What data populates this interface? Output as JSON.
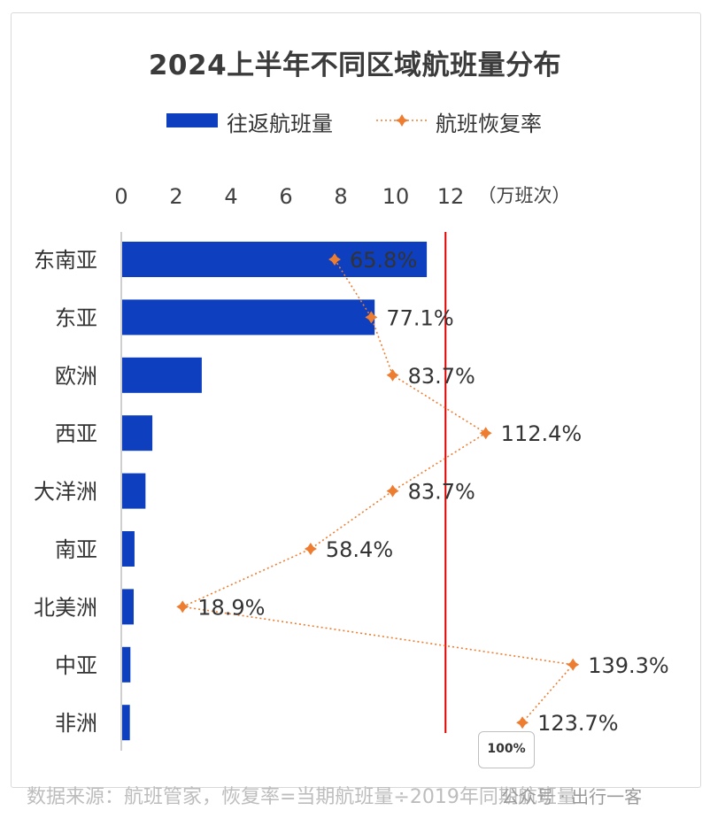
{
  "chart_data": {
    "type": "bar",
    "orientation": "horizontal",
    "title": "2024上半年不同区域航班量分布",
    "categories": [
      "东南亚",
      "东亚",
      "欧洲",
      "西亚",
      "大洋洲",
      "南亚",
      "北美洲",
      "中亚",
      "非洲"
    ],
    "series": [
      {
        "name": "往返航班量",
        "kind": "bar",
        "color": "#0d3fbf",
        "values": [
          11.1,
          9.2,
          2.9,
          1.1,
          0.85,
          0.45,
          0.42,
          0.3,
          0.28
        ]
      },
      {
        "name": "航班恢复率",
        "kind": "line",
        "color": "#ed7d31",
        "values": [
          65.8,
          77.1,
          83.7,
          112.4,
          83.7,
          58.4,
          18.9,
          139.3,
          123.7
        ],
        "labels": [
          "65.8%",
          "77.1%",
          "83.7%",
          "112.4%",
          "83.7%",
          "58.4%",
          "18.9%",
          "139.3%",
          "123.7%"
        ]
      }
    ],
    "x_axis": {
      "ticks": [
        "0",
        "2",
        "4",
        "6",
        "8",
        "10",
        "12"
      ],
      "range": [
        0,
        12
      ],
      "unit": "（万班次）"
    },
    "secondary_axis": {
      "range": [
        0,
        166
      ]
    },
    "reference_line": {
      "value": 100,
      "label": "100%",
      "color": "#e00000"
    },
    "legend_position": "top"
  },
  "source": "数据来源：航班管家，恢复率=当期航班量÷2019年同期航班量",
  "watermark": "公众号 · 出行一客"
}
